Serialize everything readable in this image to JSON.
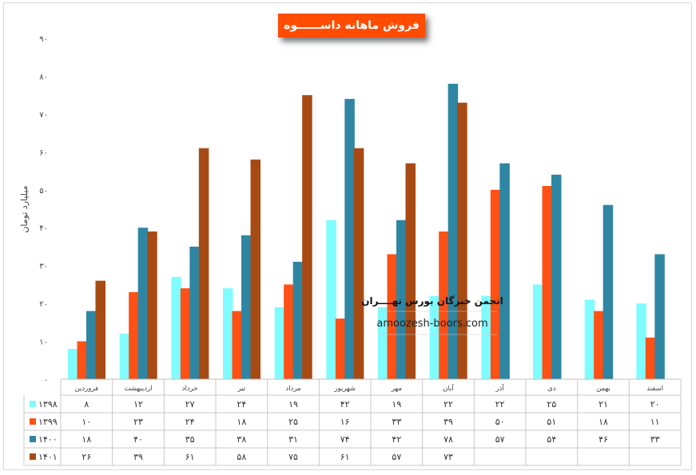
{
  "chart_data": {
    "type": "bar",
    "title": "فروش ماهانه داســــــوه",
    "ylabel": "میلیارد تومان",
    "ylim": [
      0,
      90
    ],
    "yticks": [
      "۰",
      "۱۰",
      "۲۰",
      "۳۰",
      "۴۰",
      "۵۰",
      "۶۰",
      "۷۰",
      "۸۰",
      "۹۰"
    ],
    "categories": [
      "فروردین",
      "اردیبهشت",
      "خرداد",
      "تیر",
      "مرداد",
      "شهریور",
      "مهر",
      "آبان",
      "آذر",
      "دی",
      "بهمن",
      "اسفند"
    ],
    "series": [
      {
        "name": "۱۳۹۸",
        "color": "#7ffcff",
        "values": [
          8,
          12,
          27,
          24,
          19,
          42,
          19,
          22,
          22,
          25,
          21,
          20
        ],
        "labels": [
          "۸",
          "۱۲",
          "۲۷",
          "۲۴",
          "۱۹",
          "۴۲",
          "۱۹",
          "۲۲",
          "۲۲",
          "۲۵",
          "۲۱",
          "۲۰"
        ]
      },
      {
        "name": "۱۳۹۹",
        "color": "#ff5015",
        "values": [
          10,
          23,
          24,
          18,
          25,
          16,
          33,
          39,
          50,
          51,
          18,
          11
        ],
        "labels": [
          "۱۰",
          "۲۳",
          "۲۴",
          "۱۸",
          "۲۵",
          "۱۶",
          "۳۳",
          "۳۹",
          "۵۰",
          "۵۱",
          "۱۸",
          "۱۱"
        ]
      },
      {
        "name": "۱۴۰۰",
        "color": "#2e86a3",
        "values": [
          18,
          40,
          35,
          38,
          31,
          74,
          42,
          78,
          57,
          54,
          46,
          33
        ],
        "labels": [
          "۱۸",
          "۴۰",
          "۳۵",
          "۳۸",
          "۳۱",
          "۷۴",
          "۴۲",
          "۷۸",
          "۵۷",
          "۵۴",
          "۴۶",
          "۳۳"
        ]
      },
      {
        "name": "۱۴۰۱",
        "color": "#a74a14",
        "values": [
          26,
          39,
          61,
          58,
          75,
          61,
          57,
          73,
          null,
          null,
          null,
          null
        ],
        "labels": [
          "۲۶",
          "۳۹",
          "۶۱",
          "۵۸",
          "۷۵",
          "۶۱",
          "۵۷",
          "۷۳",
          "",
          "",
          "",
          ""
        ]
      }
    ],
    "grid": false,
    "legend": "data-table"
  },
  "watermark": {
    "line1": "انجمن خبرگان بورس تهــــران",
    "line2": "amoozesh-boors.com"
  }
}
